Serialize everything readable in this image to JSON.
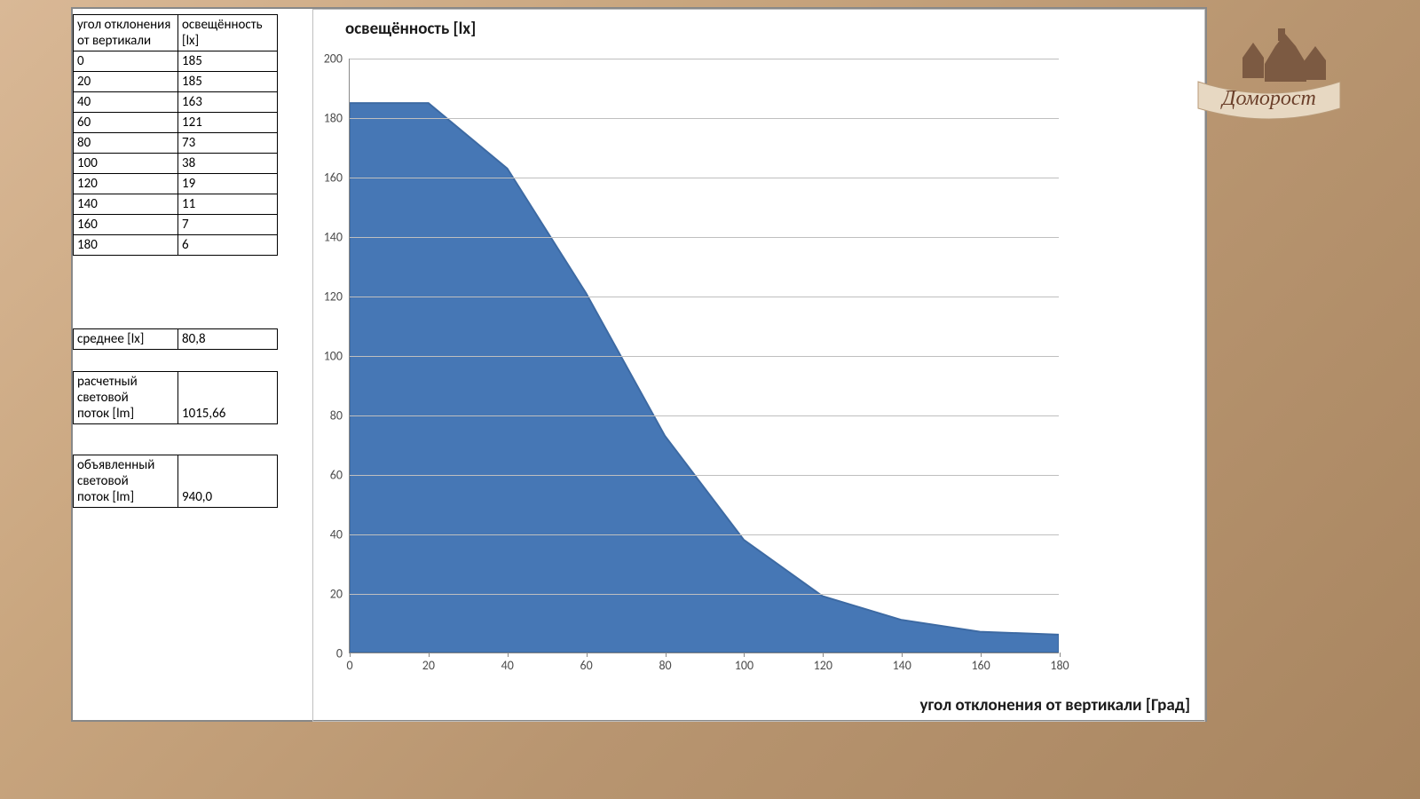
{
  "table": {
    "header_angle": "угол отклонения от вертикали",
    "header_lux": "освещённость [lx]",
    "rows": [
      {
        "angle": "0",
        "lux": "185"
      },
      {
        "angle": "20",
        "lux": "185"
      },
      {
        "angle": "40",
        "lux": "163"
      },
      {
        "angle": "60",
        "lux": "121"
      },
      {
        "angle": "80",
        "lux": "73"
      },
      {
        "angle": "100",
        "lux": "38"
      },
      {
        "angle": "120",
        "lux": "19"
      },
      {
        "angle": "140",
        "lux": "11"
      },
      {
        "angle": "160",
        "lux": "7"
      },
      {
        "angle": "180",
        "lux": "6"
      }
    ]
  },
  "summary": {
    "mean_label": "среднее  [lx]",
    "mean_value": "80,8",
    "calc_label_l1": "расчетный",
    "calc_label_l2": "световой",
    "calc_label_l3": "поток  [lm]",
    "calc_value": "1015,66",
    "decl_label_l1": "объявленный",
    "decl_label_l2": "световой",
    "decl_label_l3": "поток  [lm]",
    "decl_value": "940,0"
  },
  "chart": {
    "type": "area",
    "title": "освещённость [lx]",
    "x_axis_label": "угол отклонения от вертикали  [Град]",
    "xlim": [
      0,
      180
    ],
    "ylim": [
      0,
      200
    ],
    "xtick_step": 20,
    "ytick_step": 20,
    "x_values": [
      0,
      20,
      40,
      60,
      80,
      100,
      120,
      140,
      160,
      180
    ],
    "y_values": [
      185,
      185,
      163,
      121,
      73,
      38,
      19,
      11,
      7,
      6
    ],
    "fill_color": "#4677b5",
    "line_color": "#3d6aa3",
    "grid_color": "#bfbfbf",
    "axis_color": "#888888",
    "background_color": "#ffffff",
    "title_fontsize": 19,
    "label_fontsize": 19,
    "tick_fontsize": 14,
    "tick_color": "#4d4d4d",
    "line_width": 2
  },
  "logo": {
    "text": "Доморост",
    "banner_color": "#e7d8c2",
    "text_color": "#6b3f2a",
    "house_color": "#7c5a42"
  }
}
